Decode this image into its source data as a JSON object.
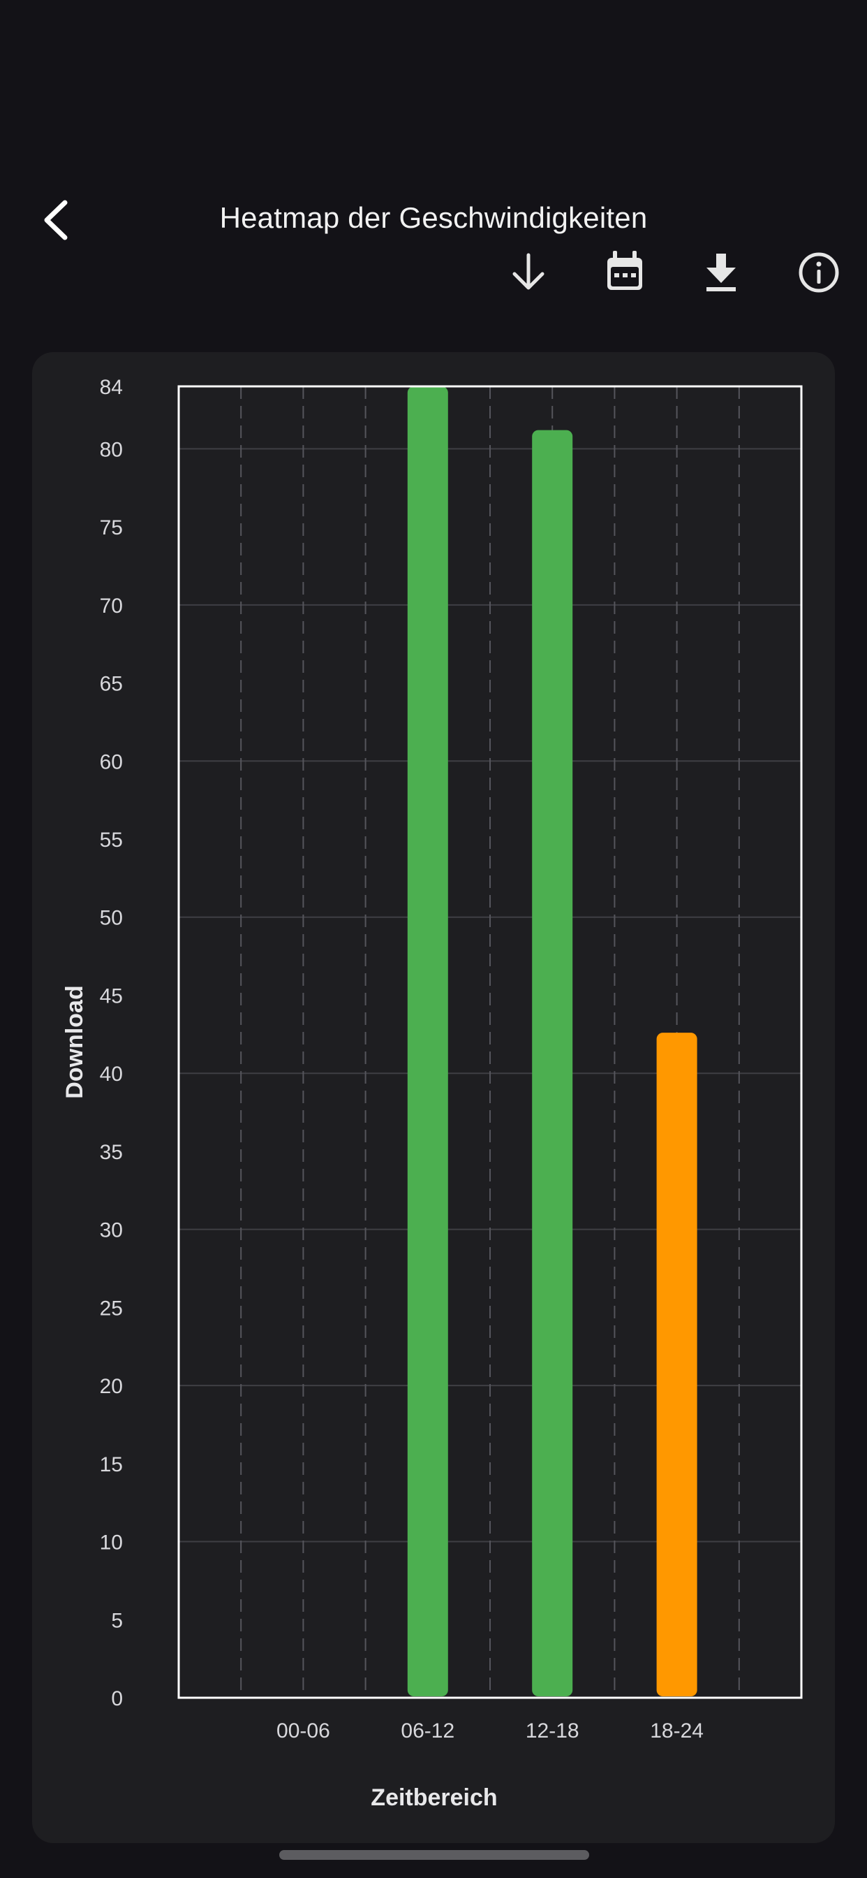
{
  "header": {
    "title": "Heatmap der Geschwindigkeiten",
    "back_icon": "chevron-left-icon",
    "toolbar_icons": [
      "arrow-down-icon",
      "calendar-icon",
      "download-icon",
      "info-icon"
    ]
  },
  "colors": {
    "background": "#131217",
    "card": "#1e1e21",
    "good": "#4caf50",
    "medium": "#ff9800"
  },
  "chart_data": {
    "type": "bar",
    "categories": [
      "00-06",
      "06-12",
      "12-18",
      "18-24"
    ],
    "values": [
      0,
      84,
      81.2,
      42.6
    ],
    "bar_colors": [
      "#4caf50",
      "#4caf50",
      "#4caf50",
      "#ff9800"
    ],
    "xlabel": "Zeitbereich",
    "ylabel": "Download",
    "ylim": [
      0,
      84
    ],
    "yticks": [
      0,
      5,
      10,
      15,
      20,
      25,
      30,
      35,
      40,
      45,
      50,
      55,
      60,
      65,
      70,
      75,
      80,
      84
    ],
    "grid": true
  }
}
